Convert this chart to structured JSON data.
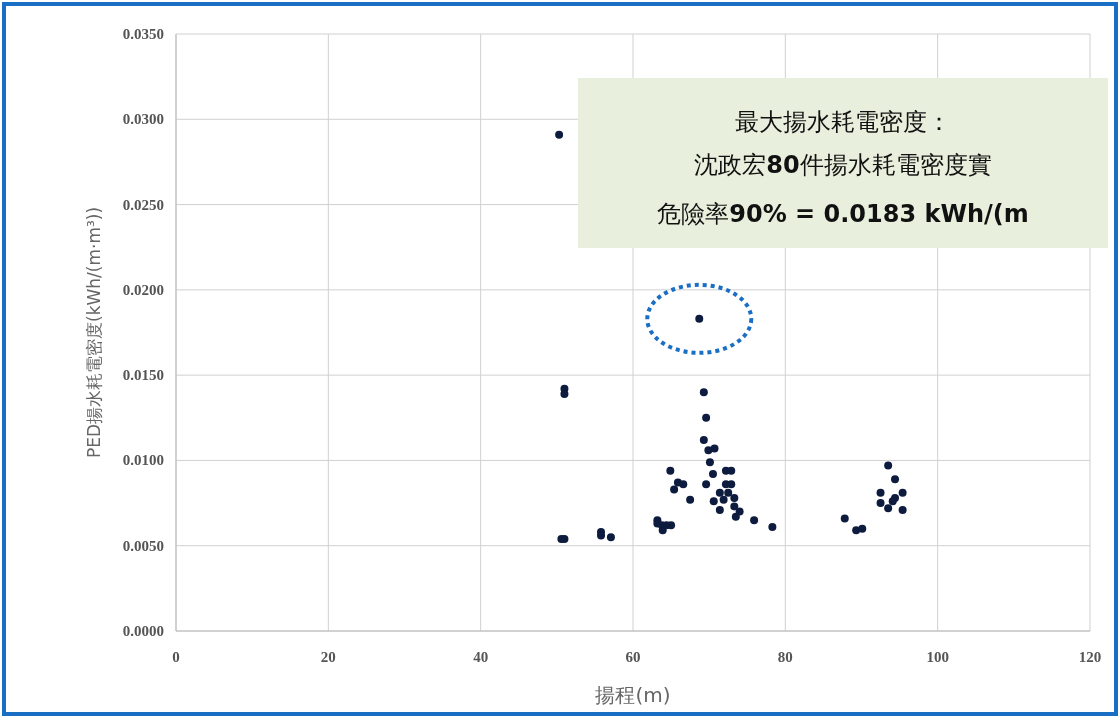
{
  "chart_data": {
    "type": "scatter",
    "xlabel": "揚程(m)",
    "ylabel": "PED揚水耗電密度(kWh/(m·m³))",
    "x": [
      50.3,
      51.0,
      51.0,
      69.3,
      69.6,
      69.3,
      69.9,
      70.7,
      70.1,
      64.9,
      70.5,
      72.2,
      72.9,
      65.9,
      66.6,
      69.6,
      72.2,
      72.9,
      65.4,
      67.5,
      71.4,
      72.5,
      70.6,
      71.9,
      73.3,
      71.4,
      73.3,
      74.0,
      73.5,
      75.9,
      78.3,
      63.2,
      63.2,
      63.8,
      63.9,
      65.0,
      64.4,
      51.0,
      50.6,
      55.8,
      55.8,
      57.1,
      87.8,
      89.3,
      90.1,
      93.5,
      94.4,
      92.5,
      95.4,
      92.5,
      94.4,
      94.1,
      93.5,
      95.4,
      68.7
    ],
    "values": [
      0.0291,
      0.0142,
      0.0139,
      0.014,
      0.0125,
      0.0112,
      0.0106,
      0.0107,
      0.0099,
      0.0094,
      0.0092,
      0.0094,
      0.0094,
      0.0087,
      0.0086,
      0.0086,
      0.0086,
      0.0086,
      0.0083,
      0.0077,
      0.0081,
      0.0081,
      0.0076,
      0.0077,
      0.0078,
      0.0071,
      0.0073,
      0.007,
      0.0067,
      0.0065,
      0.0061,
      0.0065,
      0.0063,
      0.0062,
      0.0059,
      0.0062,
      0.0062,
      0.0054,
      0.0054,
      0.0058,
      0.0056,
      0.0055,
      0.0066,
      0.0059,
      0.006,
      0.0097,
      0.0089,
      0.0081,
      0.0081,
      0.0075,
      0.0078,
      0.0076,
      0.0072,
      0.0071,
      0.0183
    ],
    "color": "#0d1b3e",
    "marker": "circle",
    "grid": true,
    "xlim": [
      0,
      120
    ],
    "xticks": [
      0,
      20,
      40,
      60,
      80,
      100,
      120
    ],
    "ylim": [
      0,
      0.035
    ],
    "yticks": [
      {
        "value": 0,
        "label": "0.0000"
      },
      {
        "value": 0.005,
        "label": "0.0050"
      },
      {
        "value": 0.01,
        "label": "0.0100"
      },
      {
        "value": 0.015,
        "label": "0.0150"
      },
      {
        "value": 0.02,
        "label": "0.0200"
      },
      {
        "value": 0.025,
        "label": "0.0250"
      },
      {
        "value": 0.03,
        "label": "0.0300"
      },
      {
        "value": 0.035,
        "label": "0.0350"
      }
    ],
    "annotations": [
      "最大揚水耗電密度：",
      "沈政宏**80**件揚水耗電密度實",
      "危險率**90% = 0.0183 kWh/(m**"
    ]
  }
}
